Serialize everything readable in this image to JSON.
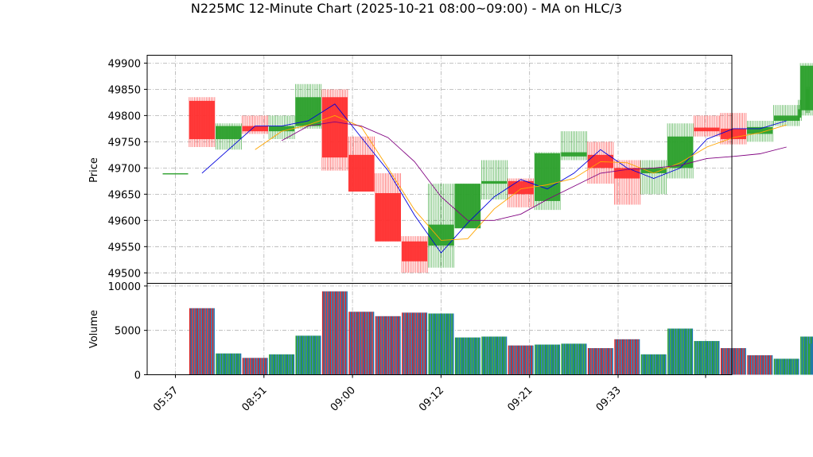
{
  "chart_data": {
    "type": "candlestick",
    "title": "N225MC 12-Minute Chart (2025-10-21 08:00~09:00) - MA on HLC/3",
    "x_tick_labels": [
      "05:57",
      "08:51",
      "09:00",
      "09:12",
      "09:21",
      "09:33",
      ""
    ],
    "price_panel": {
      "ylabel": "Price",
      "ylim": [
        49480,
        49915
      ],
      "yticks": [
        49500,
        49550,
        49600,
        49650,
        49700,
        49750,
        49800,
        49850,
        49900
      ],
      "up_color": "#2ca02c",
      "down_color": "#ff3030",
      "candles": [
        {
          "i": 0,
          "open": 49690,
          "high": 49690,
          "low": 49690,
          "close": 49690
        },
        {
          "i": 1,
          "open": 49828,
          "high": 49835,
          "low": 49740,
          "close": 49755
        },
        {
          "i": 2,
          "open": 49755,
          "high": 49785,
          "low": 49735,
          "close": 49780
        },
        {
          "i": 3,
          "open": 49780,
          "high": 49800,
          "low": 49765,
          "close": 49770
        },
        {
          "i": 4,
          "open": 49770,
          "high": 49800,
          "low": 49755,
          "close": 49780
        },
        {
          "i": 5,
          "open": 49780,
          "high": 49860,
          "low": 49775,
          "close": 49835
        },
        {
          "i": 6,
          "open": 49835,
          "high": 49850,
          "low": 49695,
          "close": 49720
        },
        {
          "i": 7,
          "open": 49725,
          "high": 49760,
          "low": 49655,
          "close": 49655
        },
        {
          "i": 8,
          "open": 49652,
          "high": 49690,
          "low": 49560,
          "close": 49560
        },
        {
          "i": 9,
          "open": 49560,
          "high": 49570,
          "low": 49500,
          "close": 49522
        },
        {
          "i": 10,
          "open": 49552,
          "high": 49670,
          "low": 49510,
          "close": 49592
        },
        {
          "i": 11,
          "open": 49585,
          "high": 49670,
          "low": 49585,
          "close": 49670
        },
        {
          "i": 12,
          "open": 49670,
          "high": 49715,
          "low": 49640,
          "close": 49675
        },
        {
          "i": 13,
          "open": 49675,
          "high": 49680,
          "low": 49625,
          "close": 49650
        },
        {
          "i": 14,
          "open": 49637,
          "high": 49730,
          "low": 49620,
          "close": 49728
        },
        {
          "i": 15,
          "open": 49722,
          "high": 49770,
          "low": 49715,
          "close": 49730
        },
        {
          "i": 16,
          "open": 49725,
          "high": 49750,
          "low": 49670,
          "close": 49700
        },
        {
          "i": 17,
          "open": 49700,
          "high": 49715,
          "low": 49630,
          "close": 49680
        },
        {
          "i": 18,
          "open": 49690,
          "high": 49715,
          "low": 49650,
          "close": 49700
        },
        {
          "i": 19,
          "open": 49700,
          "high": 49785,
          "low": 49680,
          "close": 49760
        },
        {
          "i": 20,
          "open": 49777,
          "high": 49800,
          "low": 49760,
          "close": 49770
        },
        {
          "i": 21,
          "open": 49775,
          "high": 49805,
          "low": 49745,
          "close": 49755
        },
        {
          "i": 22,
          "open": 49765,
          "high": 49790,
          "low": 49750,
          "close": 49778
        },
        {
          "i": 23,
          "open": 49790,
          "high": 49820,
          "low": 49780,
          "close": 49800
        },
        {
          "i": 24,
          "open": 49810,
          "high": 49900,
          "low": 49800,
          "close": 49895
        }
      ],
      "narrow_candles": [
        {
          "pos": 23.5,
          "open": 49796,
          "high": 49830,
          "low": 49790,
          "close": 49812
        },
        {
          "pos": 23.8,
          "open": 49812,
          "high": 49855,
          "low": 49805,
          "close": 49850
        },
        {
          "pos": 24.1,
          "open": 49850,
          "high": 49898,
          "low": 49845,
          "close": 49895
        }
      ],
      "ma_series": [
        {
          "color": "#0000dd",
          "points": [
            [
              1,
              49690
            ],
            [
              3,
              49780
            ],
            [
              4,
              49780
            ],
            [
              5,
              49790
            ],
            [
              6,
              49822
            ],
            [
              7,
              49758
            ],
            [
              8,
              49695
            ],
            [
              9,
              49610
            ],
            [
              10,
              49538
            ],
            [
              11,
              49595
            ],
            [
              12,
              49645
            ],
            [
              13,
              49678
            ],
            [
              14,
              49660
            ],
            [
              15,
              49690
            ],
            [
              16,
              49735
            ],
            [
              17,
              49700
            ],
            [
              18,
              49680
            ],
            [
              19,
              49700
            ],
            [
              20,
              49755
            ],
            [
              21,
              49775
            ],
            [
              22,
              49775
            ],
            [
              23,
              49790
            ]
          ]
        },
        {
          "color": "#ffa500",
          "points": [
            [
              3,
              49735
            ],
            [
              4,
              49770
            ],
            [
              5,
              49782
            ],
            [
              6,
              49800
            ],
            [
              7,
              49778
            ],
            [
              8,
              49700
            ],
            [
              9,
              49620
            ],
            [
              10,
              49562
            ],
            [
              11,
              49565
            ],
            [
              12,
              49622
            ],
            [
              13,
              49660
            ],
            [
              14,
              49668
            ],
            [
              15,
              49680
            ],
            [
              16,
              49712
            ],
            [
              17,
              49710
            ],
            [
              18,
              49690
            ],
            [
              19,
              49710
            ],
            [
              20,
              49740
            ],
            [
              21,
              49758
            ],
            [
              22,
              49767
            ],
            [
              23,
              49782
            ]
          ]
        },
        {
          "color": "#800080",
          "points": [
            [
              4,
              49752
            ],
            [
              5,
              49780
            ],
            [
              6,
              49788
            ],
            [
              7,
              49780
            ],
            [
              8,
              49758
            ],
            [
              9,
              49712
            ],
            [
              10,
              49645
            ],
            [
              11,
              49600
            ],
            [
              12,
              49600
            ],
            [
              13,
              49612
            ],
            [
              14,
              49640
            ],
            [
              15,
              49665
            ],
            [
              16,
              49690
            ],
            [
              17,
              49697
            ],
            [
              18,
              49700
            ],
            [
              19,
              49705
            ],
            [
              20,
              49718
            ],
            [
              21,
              49722
            ],
            [
              22,
              49727
            ],
            [
              23,
              49740
            ]
          ]
        }
      ]
    },
    "volume_panel": {
      "ylabel": "Volume",
      "ylim": [
        0,
        10300
      ],
      "yticks": [
        0,
        5000,
        10000
      ],
      "bars": [
        {
          "i": 0,
          "value": 0,
          "dir": "flat"
        },
        {
          "i": 1,
          "value": 7500,
          "dir": "down"
        },
        {
          "i": 2,
          "value": 2400,
          "dir": "up"
        },
        {
          "i": 3,
          "value": 1900,
          "dir": "down"
        },
        {
          "i": 4,
          "value": 2300,
          "dir": "up"
        },
        {
          "i": 5,
          "value": 4400,
          "dir": "up"
        },
        {
          "i": 6,
          "value": 9400,
          "dir": "down"
        },
        {
          "i": 7,
          "value": 7100,
          "dir": "down"
        },
        {
          "i": 8,
          "value": 6600,
          "dir": "down"
        },
        {
          "i": 9,
          "value": 7000,
          "dir": "down"
        },
        {
          "i": 10,
          "value": 6900,
          "dir": "up"
        },
        {
          "i": 11,
          "value": 4200,
          "dir": "up"
        },
        {
          "i": 12,
          "value": 4300,
          "dir": "up"
        },
        {
          "i": 13,
          "value": 3300,
          "dir": "down"
        },
        {
          "i": 14,
          "value": 3400,
          "dir": "up"
        },
        {
          "i": 15,
          "value": 3500,
          "dir": "up"
        },
        {
          "i": 16,
          "value": 3000,
          "dir": "down"
        },
        {
          "i": 17,
          "value": 4000,
          "dir": "down"
        },
        {
          "i": 18,
          "value": 2300,
          "dir": "up"
        },
        {
          "i": 19,
          "value": 5200,
          "dir": "up"
        },
        {
          "i": 20,
          "value": 3800,
          "dir": "up"
        },
        {
          "i": 21,
          "value": 3000,
          "dir": "down"
        },
        {
          "i": 22,
          "value": 2200,
          "dir": "down"
        },
        {
          "i": 23,
          "value": 1800,
          "dir": "up"
        },
        {
          "i": 24,
          "value": 4300,
          "dir": "up"
        }
      ],
      "narrow_bars": [
        {
          "pos": 23.9,
          "value": 3500,
          "dir": "up"
        },
        {
          "pos": 24.1,
          "value": 4600,
          "dir": "up"
        }
      ]
    }
  }
}
